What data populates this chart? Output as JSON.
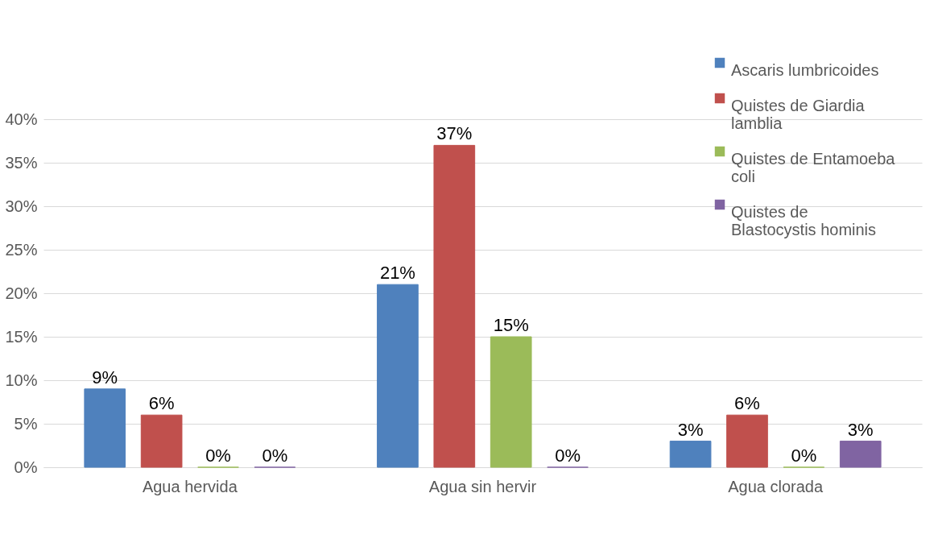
{
  "chart_data": {
    "type": "bar",
    "categories": [
      "Agua hervida",
      "Agua sin hervir",
      "Agua clorada"
    ],
    "series": [
      {
        "name": "Ascaris lumbricoides",
        "color": "#4f81bd",
        "values": [
          9,
          21,
          3
        ],
        "value_labels": [
          "9%",
          "21%",
          "3%"
        ]
      },
      {
        "name": "Quistes de Giardia lamblia",
        "color": "#c0504d",
        "values": [
          6,
          37,
          6
        ],
        "value_labels": [
          "6%",
          "37%",
          "6%"
        ]
      },
      {
        "name": "Quistes de Entamoeba coli",
        "color": "#9bbb59",
        "values": [
          0,
          15,
          0
        ],
        "value_labels": [
          "0%",
          "15%",
          "0%"
        ]
      },
      {
        "name": "Quistes de Blastocystis hominis",
        "color": "#8064a2",
        "values": [
          0,
          0,
          3
        ],
        "value_labels": [
          "0%",
          "0%",
          "3%"
        ]
      }
    ],
    "ylim": [
      0,
      40
    ],
    "yticks": [
      {
        "value": 0,
        "label": "0%"
      },
      {
        "value": 5,
        "label": "5%"
      },
      {
        "value": 10,
        "label": "10%"
      },
      {
        "value": 15,
        "label": "15%"
      },
      {
        "value": 20,
        "label": "20%"
      },
      {
        "value": 25,
        "label": "25%"
      },
      {
        "value": 30,
        "label": "30%"
      },
      {
        "value": 35,
        "label": "35%"
      },
      {
        "value": 40,
        "label": "40%"
      }
    ],
    "grid": "y",
    "legend": "top right"
  }
}
